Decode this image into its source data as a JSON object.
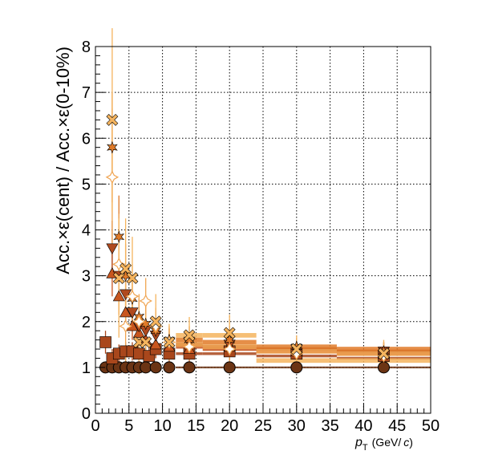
{
  "chart_data": {
    "type": "scatter",
    "title": "",
    "ylabel": "Acc.×ε(cent) / Acc.×ε(0-10%)",
    "xlabel_main": "p",
    "xlabel_sub": "T",
    "xlabel_unit_prefix": "(GeV/",
    "xlabel_unit_c": "c",
    "xlabel_unit_suffix": ")",
    "xlim": [
      0,
      50
    ],
    "ylim": [
      0,
      8
    ],
    "grid": true,
    "x_ticks": [
      "0",
      "5",
      "10",
      "15",
      "20",
      "25",
      "30",
      "35",
      "40",
      "45",
      "50"
    ],
    "y_ticks": [
      "0",
      "1",
      "2",
      "3",
      "4",
      "5",
      "6",
      "7",
      "8"
    ],
    "series": [
      {
        "color": "#6b3414",
        "marker": "circle",
        "points": [
          [
            1.5,
            1.0,
            0
          ],
          [
            2.5,
            1.0,
            0
          ],
          [
            3.5,
            1.0,
            0
          ],
          [
            4.5,
            1.0,
            0
          ],
          [
            5.5,
            1.0,
            0
          ],
          [
            6.5,
            1.0,
            0
          ],
          [
            7.5,
            1.0,
            0
          ],
          [
            9,
            1.0,
            0
          ],
          [
            11,
            1.0,
            0
          ],
          [
            14,
            1.0,
            0
          ],
          [
            20,
            1.0,
            0
          ],
          [
            30,
            1.0,
            0
          ],
          [
            43,
            1.0,
            0
          ]
        ],
        "bands": [
          [
            12,
            16,
            1.0,
            0.02
          ],
          [
            16,
            24,
            1.0,
            0.02
          ],
          [
            24,
            36,
            1.0,
            0.02
          ],
          [
            36,
            50,
            1.0,
            0.02
          ]
        ]
      },
      {
        "color": "#a9471c",
        "marker": "square",
        "points": [
          [
            1.5,
            1.55,
            0.25
          ],
          [
            2.5,
            1.2,
            0.2
          ],
          [
            3.5,
            1.3,
            0.2
          ],
          [
            4.5,
            1.35,
            0.2
          ],
          [
            5.5,
            1.35,
            0.2
          ],
          [
            6.5,
            1.3,
            0.2
          ],
          [
            8,
            1.25,
            0.2
          ],
          [
            9,
            1.4,
            0.2
          ],
          [
            11,
            1.3,
            0.2
          ],
          [
            14,
            1.3,
            0.2
          ],
          [
            20,
            1.35,
            0.2
          ],
          [
            30,
            1.3,
            0.2
          ],
          [
            43,
            1.25,
            0.15
          ]
        ],
        "bands": [
          [
            12,
            16,
            1.3,
            0.03
          ],
          [
            16,
            24,
            1.3,
            0.03
          ],
          [
            24,
            36,
            1.25,
            0.03
          ],
          [
            36,
            50,
            1.2,
            0.03
          ]
        ]
      },
      {
        "color": "#c8561f",
        "marker": "triangle-up",
        "points": [
          [
            2.5,
            3.05,
            0.5
          ],
          [
            3.5,
            2.55,
            0.4
          ],
          [
            4.5,
            2.2,
            0.4
          ],
          [
            5.5,
            1.9,
            0.3
          ],
          [
            6.5,
            1.75,
            0.3
          ],
          [
            7.5,
            1.6,
            0.3
          ],
          [
            9,
            1.5,
            0.3
          ],
          [
            11,
            1.45,
            0.2
          ],
          [
            14,
            1.4,
            0.2
          ],
          [
            20,
            1.45,
            0.2
          ],
          [
            30,
            1.35,
            0.2
          ],
          [
            43,
            1.3,
            0.2
          ]
        ],
        "bands": [
          [
            12,
            16,
            1.45,
            0.04
          ],
          [
            16,
            24,
            1.4,
            0.04
          ],
          [
            24,
            36,
            1.35,
            0.04
          ],
          [
            36,
            50,
            1.3,
            0.04
          ]
        ]
      },
      {
        "color": "#b04a1e",
        "marker": "triangle-down",
        "points": [
          [
            2.5,
            3.6,
            0.6
          ],
          [
            3.5,
            3.0,
            0.5
          ],
          [
            4.5,
            2.6,
            0.5
          ],
          [
            5.5,
            2.2,
            0.4
          ],
          [
            6.5,
            1.9,
            0.3
          ],
          [
            7.5,
            1.8,
            0.3
          ],
          [
            9,
            1.7,
            0.3
          ],
          [
            11,
            1.55,
            0.3
          ],
          [
            14,
            1.55,
            0.2
          ],
          [
            20,
            1.5,
            0.2
          ],
          [
            30,
            1.4,
            0.2
          ],
          [
            43,
            1.35,
            0.2
          ]
        ],
        "bands": [
          [
            12,
            16,
            1.5,
            0.04
          ],
          [
            16,
            24,
            1.45,
            0.04
          ],
          [
            24,
            36,
            1.4,
            0.04
          ],
          [
            36,
            50,
            1.35,
            0.04
          ]
        ]
      },
      {
        "color": "#e07a28",
        "marker": "star",
        "points": [
          [
            2.5,
            5.8,
            1.2
          ],
          [
            3.5,
            3.85,
            0.9
          ],
          [
            4.5,
            3.0,
            0.7
          ],
          [
            5.5,
            2.5,
            0.5
          ],
          [
            6.5,
            2.1,
            0.4
          ],
          [
            7.5,
            1.95,
            0.4
          ],
          [
            9,
            1.8,
            0.4
          ],
          [
            11,
            1.6,
            0.3
          ],
          [
            14,
            1.6,
            0.3
          ],
          [
            20,
            1.6,
            0.3
          ],
          [
            30,
            1.45,
            0.2
          ],
          [
            43,
            1.35,
            0.2
          ]
        ],
        "bands": [
          [
            12,
            16,
            1.6,
            0.05
          ],
          [
            16,
            24,
            1.55,
            0.05
          ],
          [
            24,
            36,
            1.45,
            0.05
          ],
          [
            36,
            50,
            1.4,
            0.05
          ]
        ]
      },
      {
        "color": "#f0a552",
        "marker": "diamond",
        "points": [
          [
            2.5,
            5.15,
            1.5
          ],
          [
            3.5,
            3.25,
            1.1
          ],
          [
            4.5,
            1.9,
            0.8
          ],
          [
            5.5,
            2.55,
            0.7
          ],
          [
            6.5,
            2.0,
            0.6
          ],
          [
            7.5,
            2.45,
            0.5
          ],
          [
            9,
            1.9,
            0.4
          ],
          [
            11,
            1.55,
            0.3
          ],
          [
            14,
            1.45,
            0.3
          ],
          [
            20,
            1.4,
            0.3
          ],
          [
            30,
            1.3,
            0.2
          ],
          [
            43,
            1.25,
            0.2
          ]
        ],
        "bands": [
          [
            12,
            16,
            1.5,
            0.05
          ],
          [
            16,
            24,
            1.45,
            0.05
          ],
          [
            24,
            36,
            1.35,
            0.05
          ],
          [
            36,
            50,
            1.3,
            0.05
          ]
        ]
      },
      {
        "color": "#f5b45e",
        "marker": "cross",
        "points": [
          [
            2.5,
            6.4,
            2.0
          ],
          [
            3.5,
            2.95,
            1.3
          ],
          [
            4.5,
            3.15,
            1.1
          ],
          [
            5.5,
            2.95,
            0.9
          ],
          [
            6.5,
            1.55,
            0.7
          ],
          [
            7.5,
            1.55,
            0.6
          ],
          [
            9,
            2.0,
            0.6
          ],
          [
            11,
            1.55,
            0.4
          ],
          [
            14,
            1.7,
            0.4
          ],
          [
            20,
            1.75,
            0.4
          ],
          [
            30,
            1.4,
            0.3
          ],
          [
            43,
            1.3,
            0.3
          ]
        ],
        "bands": [
          [
            12,
            16,
            1.7,
            0.05
          ],
          [
            16,
            24,
            1.7,
            0.05
          ],
          [
            24,
            36,
            1.15,
            0.05
          ],
          [
            36,
            50,
            1.15,
            0.05
          ]
        ]
      }
    ]
  }
}
